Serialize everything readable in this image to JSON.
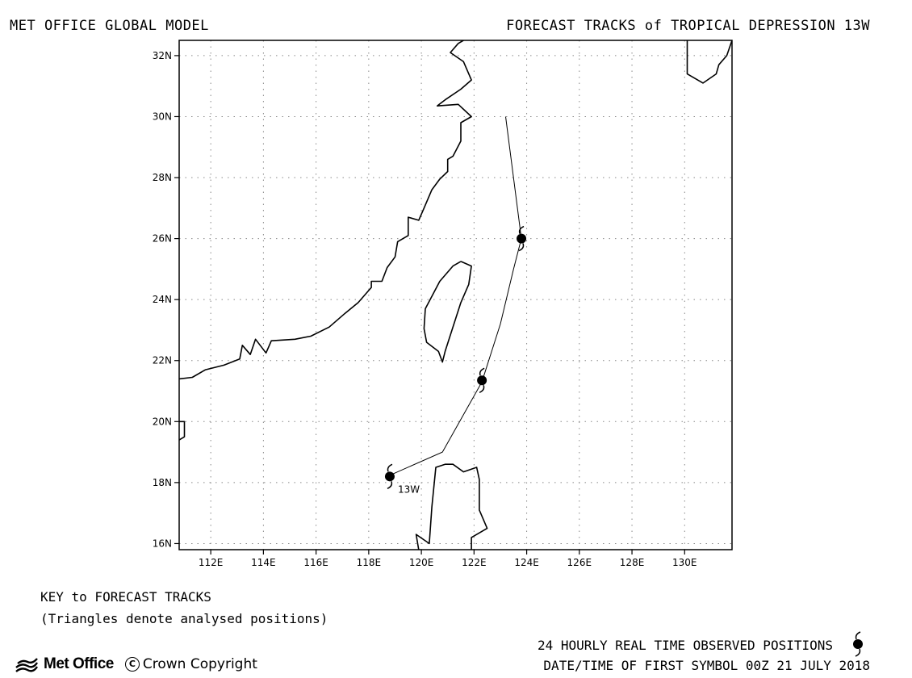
{
  "header": {
    "left_title": "MET OFFICE GLOBAL MODEL",
    "right_title": "FORECAST TRACKS of TROPICAL DEPRESSION 13W"
  },
  "map": {
    "lon_range": [
      110.8,
      131.8
    ],
    "lat_range": [
      15.8,
      32.5
    ],
    "grid": "dotted",
    "lat_ticks": [
      "32N",
      "30N",
      "28N",
      "26N",
      "24N",
      "22N",
      "20N",
      "18N",
      "16N"
    ],
    "lat_values": [
      32,
      30,
      28,
      26,
      24,
      22,
      20,
      18,
      16
    ],
    "lon_ticks": [
      "112E",
      "114E",
      "116E",
      "118E",
      "120E",
      "122E",
      "124E",
      "126E",
      "128E",
      "130E"
    ],
    "lon_values": [
      112,
      114,
      116,
      118,
      120,
      122,
      124,
      126,
      128,
      130
    ],
    "storm_label": "13W",
    "track": [
      {
        "lon": 118.7,
        "lat": 18.2
      },
      {
        "lon": 120.8,
        "lat": 19.0
      },
      {
        "lon": 122.3,
        "lat": 21.3
      },
      {
        "lon": 123.0,
        "lat": 23.2
      },
      {
        "lon": 123.5,
        "lat": 25.0
      },
      {
        "lon": 123.8,
        "lat": 26.0
      },
      {
        "lon": 123.2,
        "lat": 30.0
      }
    ],
    "observed_positions": [
      {
        "lon": 118.8,
        "lat": 18.2
      },
      {
        "lon": 122.3,
        "lat": 21.35
      },
      {
        "lon": 123.8,
        "lat": 26.0
      }
    ],
    "coastlines": {
      "china": [
        [
          110.8,
          21.4
        ],
        [
          111.3,
          21.45
        ],
        [
          111.8,
          21.7
        ],
        [
          112.5,
          21.85
        ],
        [
          113.1,
          22.05
        ],
        [
          113.2,
          22.5
        ],
        [
          113.5,
          22.2
        ],
        [
          113.7,
          22.7
        ],
        [
          114.1,
          22.25
        ],
        [
          114.3,
          22.65
        ],
        [
          115.2,
          22.7
        ],
        [
          115.8,
          22.8
        ],
        [
          116.5,
          23.1
        ],
        [
          117.1,
          23.55
        ],
        [
          117.6,
          23.9
        ],
        [
          118.1,
          24.4
        ],
        [
          118.1,
          24.6
        ],
        [
          118.5,
          24.6
        ],
        [
          118.7,
          25.05
        ],
        [
          119.0,
          25.4
        ],
        [
          119.1,
          25.9
        ],
        [
          119.5,
          26.1
        ],
        [
          119.5,
          26.7
        ],
        [
          119.9,
          26.6
        ],
        [
          120.1,
          27.0
        ],
        [
          120.4,
          27.6
        ],
        [
          120.7,
          27.95
        ],
        [
          121.0,
          28.2
        ],
        [
          121.0,
          28.6
        ],
        [
          121.2,
          28.7
        ],
        [
          121.5,
          29.2
        ],
        [
          121.5,
          29.8
        ],
        [
          121.9,
          30.0
        ],
        [
          121.4,
          30.4
        ],
        [
          120.6,
          30.35
        ],
        [
          120.9,
          30.55
        ],
        [
          121.5,
          30.9
        ],
        [
          121.9,
          31.2
        ],
        [
          121.6,
          31.8
        ],
        [
          121.1,
          32.1
        ],
        [
          121.4,
          32.4
        ],
        [
          121.6,
          32.5
        ]
      ],
      "taiwan": [
        [
          121.5,
          25.25
        ],
        [
          121.9,
          25.1
        ],
        [
          121.8,
          24.5
        ],
        [
          121.5,
          23.9
        ],
        [
          121.2,
          23.1
        ],
        [
          120.9,
          22.3
        ],
        [
          120.8,
          21.95
        ],
        [
          120.65,
          22.3
        ],
        [
          120.2,
          22.6
        ],
        [
          120.1,
          23.05
        ],
        [
          120.15,
          23.7
        ],
        [
          120.7,
          24.6
        ],
        [
          121.2,
          25.1
        ],
        [
          121.5,
          25.25
        ]
      ],
      "luzon": [
        [
          119.9,
          15.8
        ],
        [
          119.8,
          16.3
        ],
        [
          120.3,
          16.0
        ],
        [
          120.4,
          17.2
        ],
        [
          120.55,
          18.5
        ],
        [
          120.9,
          18.6
        ],
        [
          121.2,
          18.6
        ],
        [
          121.6,
          18.35
        ],
        [
          122.1,
          18.5
        ],
        [
          122.2,
          18.1
        ],
        [
          122.2,
          17.1
        ],
        [
          122.5,
          16.5
        ],
        [
          121.9,
          16.2
        ],
        [
          121.9,
          15.8
        ]
      ],
      "hainan": [
        [
          110.8,
          20.0
        ],
        [
          111.0,
          20.0
        ],
        [
          111.0,
          19.5
        ],
        [
          110.8,
          19.4
        ]
      ],
      "kyushu": [
        [
          130.1,
          32.5
        ],
        [
          130.1,
          31.4
        ],
        [
          130.7,
          31.1
        ],
        [
          131.2,
          31.4
        ],
        [
          131.3,
          31.7
        ],
        [
          131.6,
          32.0
        ],
        [
          131.8,
          32.5
        ]
      ]
    }
  },
  "key": {
    "title": "KEY to FORECAST TRACKS",
    "note": "(Triangles denote analysed positions)"
  },
  "legend": {
    "observed_label": "24 HOURLY REAL TIME OBSERVED POSITIONS",
    "datetime_label": "DATE/TIME OF FIRST SYMBOL 00Z 21 JULY 2018"
  },
  "branding": {
    "logo_text": "Met Office",
    "copyright_text": "Crown Copyright"
  }
}
